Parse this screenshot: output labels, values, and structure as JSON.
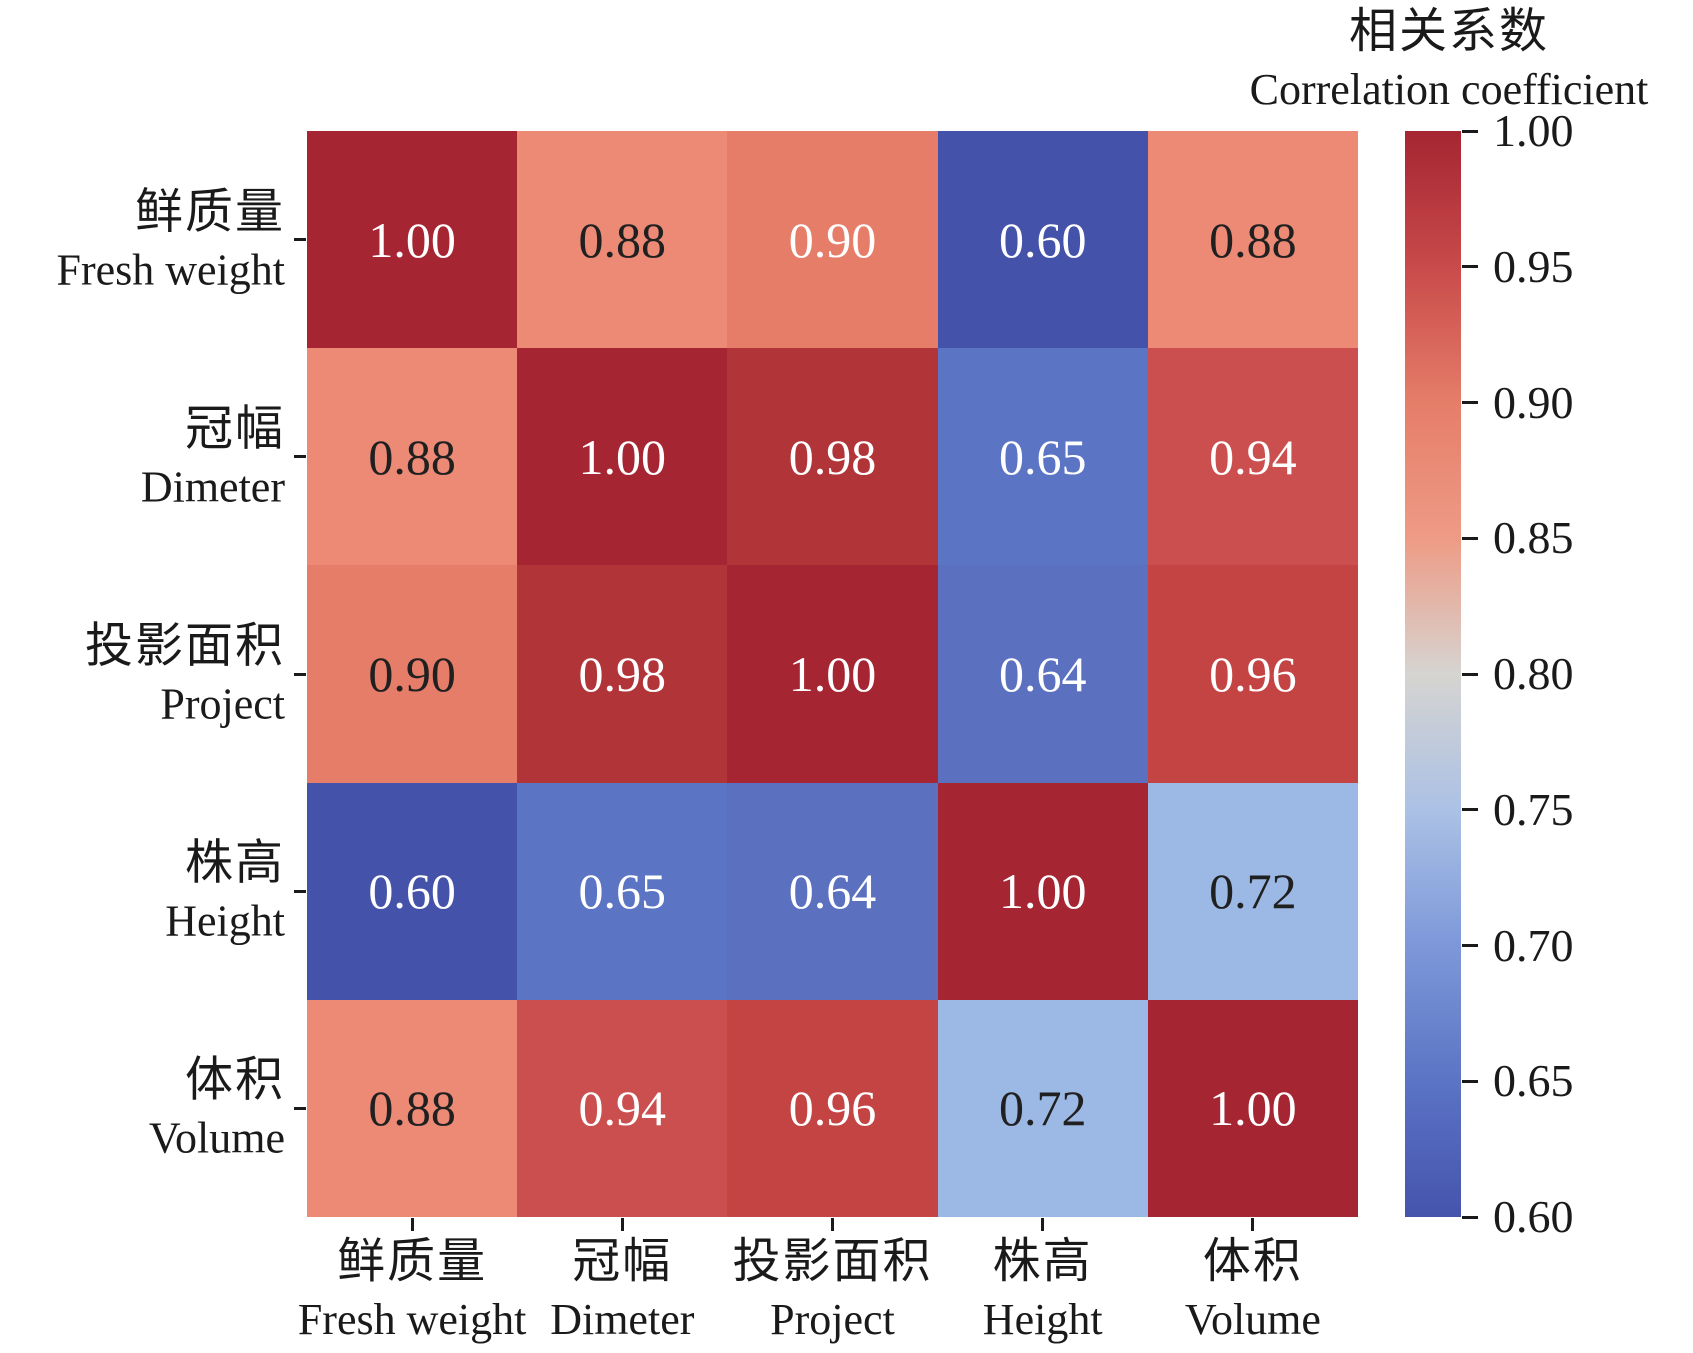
{
  "chart_data": {
    "type": "heatmap",
    "title": "相关系数 Correlation coefficient",
    "variables": [
      {
        "zh": "鲜质量",
        "en": "Fresh weight"
      },
      {
        "zh": "冠幅",
        "en": "Dimeter"
      },
      {
        "zh": "投影面积",
        "en": "Project"
      },
      {
        "zh": "株高",
        "en": "Height"
      },
      {
        "zh": "体积",
        "en": "Volume"
      }
    ],
    "matrix": [
      [
        1.0,
        0.88,
        0.9,
        0.6,
        0.88
      ],
      [
        0.88,
        1.0,
        0.98,
        0.65,
        0.94
      ],
      [
        0.9,
        0.98,
        1.0,
        0.64,
        0.96
      ],
      [
        0.6,
        0.65,
        0.64,
        1.0,
        0.72
      ],
      [
        0.88,
        0.94,
        0.96,
        0.72,
        1.0
      ]
    ],
    "annotation_text_colors": [
      [
        "#ffffff",
        "#202020",
        "#ffffff",
        "#ffffff",
        "#202020"
      ],
      [
        "#202020",
        "#ffffff",
        "#ffffff",
        "#ffffff",
        "#ffffff"
      ],
      [
        "#202020",
        "#ffffff",
        "#ffffff",
        "#ffffff",
        "#ffffff"
      ],
      [
        "#ffffff",
        "#ffffff",
        "#ffffff",
        "#ffffff",
        "#202020"
      ],
      [
        "#202020",
        "#ffffff",
        "#ffffff",
        "#202020",
        "#ffffff"
      ]
    ],
    "value_colors": {
      "0.60": "#4453a9",
      "0.64": "#5b71c0",
      "0.65": "#5b74c4",
      "0.72": "#9cb8e4",
      "0.88": "#ec8a76",
      "0.90": "#e57d69",
      "0.94": "#cb4f4e",
      "0.96": "#c44444",
      "0.98": "#b13439",
      "1.00": "#a52532"
    },
    "background_color": "#ffffff",
    "text_color": "#1a1a1a",
    "grid": false,
    "legend_position": "right",
    "colorbar": {
      "title_zh": "相关系数",
      "title_en": "Correlation coefficient",
      "range": [
        0.6,
        1.0
      ],
      "ticks": [
        1.0,
        0.95,
        0.9,
        0.85,
        0.8,
        0.75,
        0.7,
        0.65,
        0.6
      ],
      "gradient": [
        {
          "v": 1.0,
          "color": "#a52532"
        },
        {
          "v": 0.95,
          "color": "#c94a4a"
        },
        {
          "v": 0.9,
          "color": "#e57d69"
        },
        {
          "v": 0.85,
          "color": "#ee9b85"
        },
        {
          "v": 0.8,
          "color": "#d6d4d1"
        },
        {
          "v": 0.75,
          "color": "#abc1e5"
        },
        {
          "v": 0.7,
          "color": "#7d98d9"
        },
        {
          "v": 0.65,
          "color": "#5b74c4"
        },
        {
          "v": 0.6,
          "color": "#4553ad"
        }
      ]
    }
  }
}
